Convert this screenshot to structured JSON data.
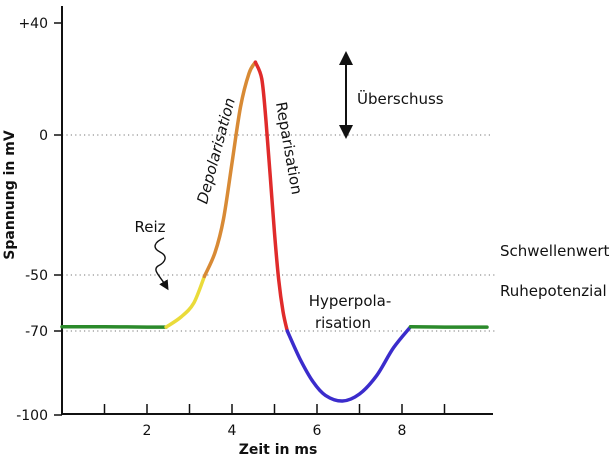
{
  "chart_data": {
    "type": "line",
    "title": "",
    "xlabel": "Zeit in ms",
    "ylabel": "Spannung in mV",
    "x_ticks": [
      2,
      4,
      6,
      8
    ],
    "x_tick_labels": [
      "2",
      "4",
      "6",
      "8"
    ],
    "x_minor_ticks": [
      1,
      2,
      3,
      4,
      5,
      6,
      7,
      8,
      9
    ],
    "xlim": [
      0,
      10
    ],
    "y_ticks": [
      40,
      0,
      -50,
      -70,
      -100
    ],
    "y_tick_labels": [
      "+40",
      "0",
      "-50",
      "-70",
      "-100"
    ],
    "ylim": [
      -123,
      50
    ],
    "reference_lines": [
      {
        "y": 0,
        "label": ""
      },
      {
        "y": -50,
        "label": "Schwellenwert"
      },
      {
        "y": -70,
        "label": "Ruhepotenzial"
      }
    ],
    "phases": [
      {
        "name": "",
        "color": "#2b8a2b",
        "points": [
          [
            0,
            -68.5
          ],
          [
            1,
            -68.5
          ],
          [
            2,
            -68.6
          ],
          [
            2.45,
            -68.6
          ]
        ]
      },
      {
        "name": "",
        "color": "#eadb3a",
        "points": [
          [
            2.45,
            -68.6
          ],
          [
            2.8,
            -65
          ],
          [
            3.1,
            -60
          ],
          [
            3.35,
            -50.5
          ]
        ]
      },
      {
        "name": "Depolarisation",
        "color": "#d88a35",
        "points": [
          [
            3.35,
            -50.5
          ],
          [
            3.6,
            -42
          ],
          [
            3.8,
            -30
          ],
          [
            4.0,
            -10
          ],
          [
            4.2,
            10
          ],
          [
            4.4,
            22
          ],
          [
            4.55,
            26
          ]
        ]
      },
      {
        "name": "Repolarisation",
        "color": "#e02b2b",
        "points": [
          [
            4.55,
            26
          ],
          [
            4.7,
            20
          ],
          [
            4.8,
            5
          ],
          [
            4.9,
            -15
          ],
          [
            5.0,
            -35
          ],
          [
            5.1,
            -52
          ],
          [
            5.2,
            -63
          ],
          [
            5.3,
            -70
          ]
        ]
      },
      {
        "name": "Hyperpolarisation",
        "color": "#3b2ccc",
        "points": [
          [
            5.3,
            -70
          ],
          [
            5.6,
            -80
          ],
          [
            5.9,
            -88
          ],
          [
            6.2,
            -93
          ],
          [
            6.6,
            -95
          ],
          [
            7.0,
            -92.5
          ],
          [
            7.4,
            -86
          ],
          [
            7.8,
            -76
          ],
          [
            8.2,
            -68.5
          ]
        ]
      },
      {
        "name": "",
        "color": "#2b8a2b",
        "points": [
          [
            8.2,
            -68.5
          ],
          [
            9,
            -68.6
          ],
          [
            10,
            -68.6
          ]
        ]
      }
    ],
    "annotations": {
      "reiz": "Reiz",
      "depolarisation": "Depolarisation",
      "repolarisation": "Reparisation",
      "hyperpolarisation_line1": "Hyperpola-",
      "hyperpolarisation_line2": "risation",
      "ueberschuss": "Überschuss",
      "schwellenwert": "Schwellenwert",
      "ruhepotenzial": "Ruhepotenzial"
    },
    "grid": false,
    "legend": "none"
  }
}
